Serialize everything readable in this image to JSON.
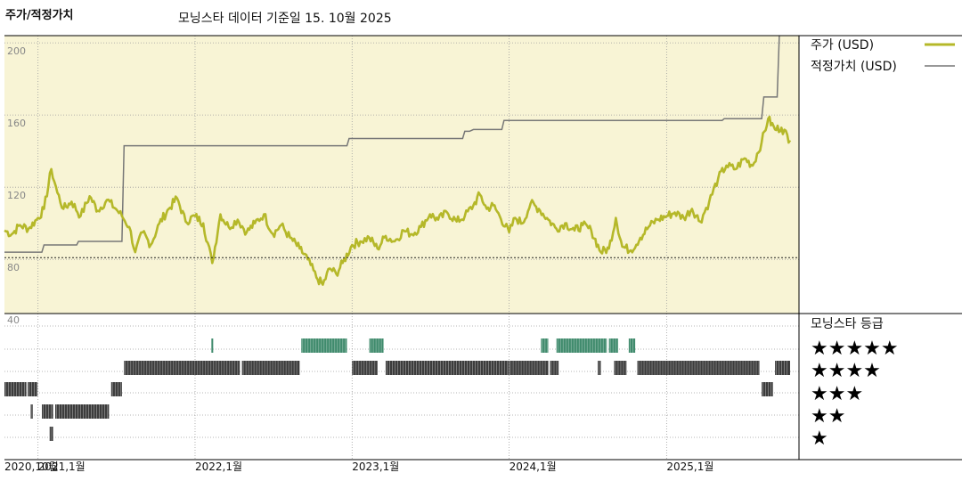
{
  "title": "주가/적정가치",
  "subtitle": "모닝스타 데이터 기준일 15. 10월 2025",
  "chart_data": [
    {
      "type": "line",
      "title": "주가/적정가치",
      "y_ticks": [
        200,
        160,
        120,
        80
      ],
      "ylim": [
        50,
        204
      ],
      "x_dates": [
        "2020-10-15",
        "2025-10-15"
      ],
      "x_tick_labels": [
        "2020,10월",
        "2021,1월",
        "2022,1월",
        "2023,1월",
        "2024,1월",
        "2025,1월"
      ],
      "x_tick_dates": [
        "2020-10-01",
        "2021-01-01",
        "2022-01-01",
        "2023-01-01",
        "2024-01-01",
        "2025-01-01"
      ],
      "reference_line": 81,
      "series": [
        {
          "name": "주가 (USD)",
          "color": "#b5b829",
          "points": [
            [
              "2020-10-15",
              96
            ],
            [
              "2020-11-01",
              94
            ],
            [
              "2020-11-20",
              99
            ],
            [
              "2020-12-10",
              97
            ],
            [
              "2021-01-01",
              103
            ],
            [
              "2021-01-15",
              108
            ],
            [
              "2021-02-01",
              130
            ],
            [
              "2021-02-15",
              117
            ],
            [
              "2021-03-01",
              108
            ],
            [
              "2021-03-20",
              112
            ],
            [
              "2021-04-10",
              104
            ],
            [
              "2021-05-01",
              115
            ],
            [
              "2021-05-20",
              107
            ],
            [
              "2021-06-10",
              113
            ],
            [
              "2021-07-01",
              108
            ],
            [
              "2021-07-15",
              104
            ],
            [
              "2021-08-01",
              98
            ],
            [
              "2021-08-15",
              84
            ],
            [
              "2021-09-01",
              95
            ],
            [
              "2021-09-20",
              88
            ],
            [
              "2021-10-10",
              100
            ],
            [
              "2021-11-01",
              108
            ],
            [
              "2021-11-20",
              114
            ],
            [
              "2021-12-10",
              101
            ],
            [
              "2022-01-01",
              104
            ],
            [
              "2022-01-20",
              100
            ],
            [
              "2022-02-10",
              78
            ],
            [
              "2022-03-01",
              105
            ],
            [
              "2022-03-20",
              98
            ],
            [
              "2022-04-10",
              102
            ],
            [
              "2022-05-01",
              95
            ],
            [
              "2022-05-20",
              100
            ],
            [
              "2022-06-10",
              105
            ],
            [
              "2022-07-01",
              94
            ],
            [
              "2022-07-20",
              99
            ],
            [
              "2022-08-10",
              92
            ],
            [
              "2022-09-01",
              86
            ],
            [
              "2022-09-20",
              80
            ],
            [
              "2022-10-10",
              70
            ],
            [
              "2022-10-25",
              66
            ],
            [
              "2022-11-10",
              75
            ],
            [
              "2022-11-25",
              72
            ],
            [
              "2022-12-10",
              78
            ],
            [
              "2023-01-01",
              88
            ],
            [
              "2023-01-20",
              90
            ],
            [
              "2023-02-10",
              92
            ],
            [
              "2023-03-01",
              86
            ],
            [
              "2023-03-20",
              93
            ],
            [
              "2023-04-10",
              90
            ],
            [
              "2023-05-01",
              96
            ],
            [
              "2023-05-20",
              94
            ],
            [
              "2023-06-10",
              98
            ],
            [
              "2023-07-01",
              105
            ],
            [
              "2023-07-20",
              102
            ],
            [
              "2023-08-10",
              106
            ],
            [
              "2023-09-01",
              101
            ],
            [
              "2023-09-20",
              104
            ],
            [
              "2023-10-10",
              110
            ],
            [
              "2023-10-25",
              116
            ],
            [
              "2023-11-10",
              108
            ],
            [
              "2023-11-25",
              110
            ],
            [
              "2023-12-10",
              104
            ],
            [
              "2024-01-01",
              95
            ],
            [
              "2024-01-15",
              103
            ],
            [
              "2024-02-01",
              100
            ],
            [
              "2024-02-20",
              111
            ],
            [
              "2024-03-10",
              108
            ],
            [
              "2024-04-01",
              102
            ],
            [
              "2024-04-20",
              97
            ],
            [
              "2024-05-10",
              100
            ],
            [
              "2024-06-01",
              96
            ],
            [
              "2024-06-20",
              99
            ],
            [
              "2024-07-10",
              96
            ],
            [
              "2024-08-01",
              84
            ],
            [
              "2024-08-20",
              86
            ],
            [
              "2024-09-05",
              103
            ],
            [
              "2024-09-20",
              87
            ],
            [
              "2024-10-10",
              85
            ],
            [
              "2024-11-01",
              92
            ],
            [
              "2024-11-20",
              98
            ],
            [
              "2024-12-10",
              102
            ],
            [
              "2025-01-01",
              104
            ],
            [
              "2025-01-20",
              106
            ],
            [
              "2025-02-10",
              103
            ],
            [
              "2025-03-01",
              108
            ],
            [
              "2025-03-20",
              101
            ],
            [
              "2025-04-10",
              112
            ],
            [
              "2025-05-01",
              125
            ],
            [
              "2025-05-20",
              132
            ],
            [
              "2025-06-10",
              130
            ],
            [
              "2025-07-01",
              136
            ],
            [
              "2025-07-20",
              132
            ],
            [
              "2025-08-10",
              145
            ],
            [
              "2025-08-25",
              158
            ],
            [
              "2025-09-10",
              152
            ],
            [
              "2025-09-25",
              153
            ],
            [
              "2025-10-15",
              146
            ]
          ]
        },
        {
          "name": "적정가치 (USD)",
          "color": "#777777",
          "points": [
            [
              "2020-10-15",
              84
            ],
            [
              "2021-01-10",
              84
            ],
            [
              "2021-01-15",
              88
            ],
            [
              "2021-04-01",
              88
            ],
            [
              "2021-04-05",
              90
            ],
            [
              "2021-07-15",
              90
            ],
            [
              "2021-07-20",
              143
            ],
            [
              "2022-12-20",
              143
            ],
            [
              "2022-12-25",
              147
            ],
            [
              "2023-09-15",
              147
            ],
            [
              "2023-09-20",
              151
            ],
            [
              "2023-10-01",
              151
            ],
            [
              "2023-10-10",
              152
            ],
            [
              "2023-12-15",
              152
            ],
            [
              "2023-12-20",
              157
            ],
            [
              "2025-05-10",
              157
            ],
            [
              "2025-05-15",
              158
            ],
            [
              "2025-08-10",
              158
            ],
            [
              "2025-08-15",
              170
            ],
            [
              "2025-09-15",
              170
            ],
            [
              "2025-09-20",
              204
            ]
          ]
        }
      ]
    },
    {
      "type": "bar",
      "title": "모닝스타 등급",
      "y_tick": 40,
      "rating_labels": [
        "★★★★★",
        "★★★★",
        "★★★",
        "★★",
        "★"
      ],
      "rating_colors": {
        "5": "#3f8a6c",
        "4": "#3c3c3c",
        "3": "#3c3c3c",
        "2": "#3c3c3c",
        "1": "#3c3c3c"
      },
      "ratings": [
        {
          "rating": 3,
          "start": "2020-10-15",
          "end": "2020-12-05"
        },
        {
          "rating": 3,
          "start": "2020-12-08",
          "end": "2020-12-31"
        },
        {
          "rating": 2,
          "start": "2020-12-15",
          "end": "2020-12-20"
        },
        {
          "rating": 1,
          "start": "2021-01-28",
          "end": "2021-02-05"
        },
        {
          "rating": 2,
          "start": "2021-01-10",
          "end": "2021-02-05"
        },
        {
          "rating": 2,
          "start": "2021-02-10",
          "end": "2021-06-15"
        },
        {
          "rating": 3,
          "start": "2021-06-20",
          "end": "2021-07-15"
        },
        {
          "rating": 4,
          "start": "2021-07-20",
          "end": "2022-04-15"
        },
        {
          "rating": 5,
          "start": "2022-02-08",
          "end": "2022-02-12"
        },
        {
          "rating": 4,
          "start": "2022-04-20",
          "end": "2022-09-01"
        },
        {
          "rating": 5,
          "start": "2022-09-05",
          "end": "2022-12-20"
        },
        {
          "rating": 4,
          "start": "2023-01-01",
          "end": "2023-03-01"
        },
        {
          "rating": 5,
          "start": "2023-02-10",
          "end": "2023-03-15"
        },
        {
          "rating": 4,
          "start": "2023-03-20",
          "end": "2023-12-31"
        },
        {
          "rating": 4,
          "start": "2024-01-01",
          "end": "2024-04-01"
        },
        {
          "rating": 5,
          "start": "2024-03-15",
          "end": "2024-04-01"
        },
        {
          "rating": 4,
          "start": "2024-04-05",
          "end": "2024-04-25"
        },
        {
          "rating": 5,
          "start": "2024-04-20",
          "end": "2024-08-15"
        },
        {
          "rating": 4,
          "start": "2024-07-25",
          "end": "2024-08-01"
        },
        {
          "rating": 5,
          "start": "2024-08-20",
          "end": "2024-09-10"
        },
        {
          "rating": 4,
          "start": "2024-09-01",
          "end": "2024-09-30"
        },
        {
          "rating": 5,
          "start": "2024-10-05",
          "end": "2024-10-20"
        },
        {
          "rating": 4,
          "start": "2024-10-25",
          "end": "2025-08-05"
        },
        {
          "rating": 3,
          "start": "2025-08-10",
          "end": "2025-09-05"
        },
        {
          "rating": 4,
          "start": "2025-09-10",
          "end": "2025-10-15"
        }
      ]
    }
  ]
}
